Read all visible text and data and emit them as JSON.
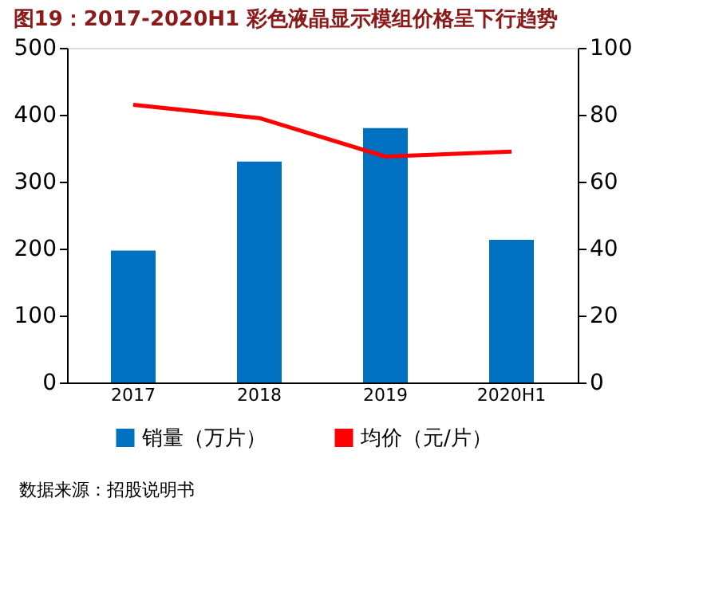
{
  "chart_data": {
    "type": "bar",
    "title": "图19：2017-2020H1 彩色液晶显示模组价格呈下行趋势",
    "categories": [
      "2017",
      "2018",
      "2019",
      "2020H1"
    ],
    "series": [
      {
        "name": "销量（万片）",
        "color": "#0070c0",
        "values": [
          197,
          330,
          380,
          213
        ]
      },
      {
        "name": "均价（元/片）",
        "type": "line",
        "axis": "y2",
        "color": "#ff0000",
        "values": [
          83,
          79,
          67.5,
          69
        ]
      }
    ],
    "ylim": [
      0,
      500
    ],
    "yticks": [
      0,
      100,
      200,
      300,
      400,
      500
    ],
    "y2lim": [
      0,
      100
    ],
    "y2ticks": [
      0,
      20,
      40,
      60,
      80,
      100
    ],
    "grid": false,
    "legend": "bottom",
    "line_style": "solid",
    "marker": "none",
    "annotations": [
      "数据来源：招股说明书"
    ]
  }
}
